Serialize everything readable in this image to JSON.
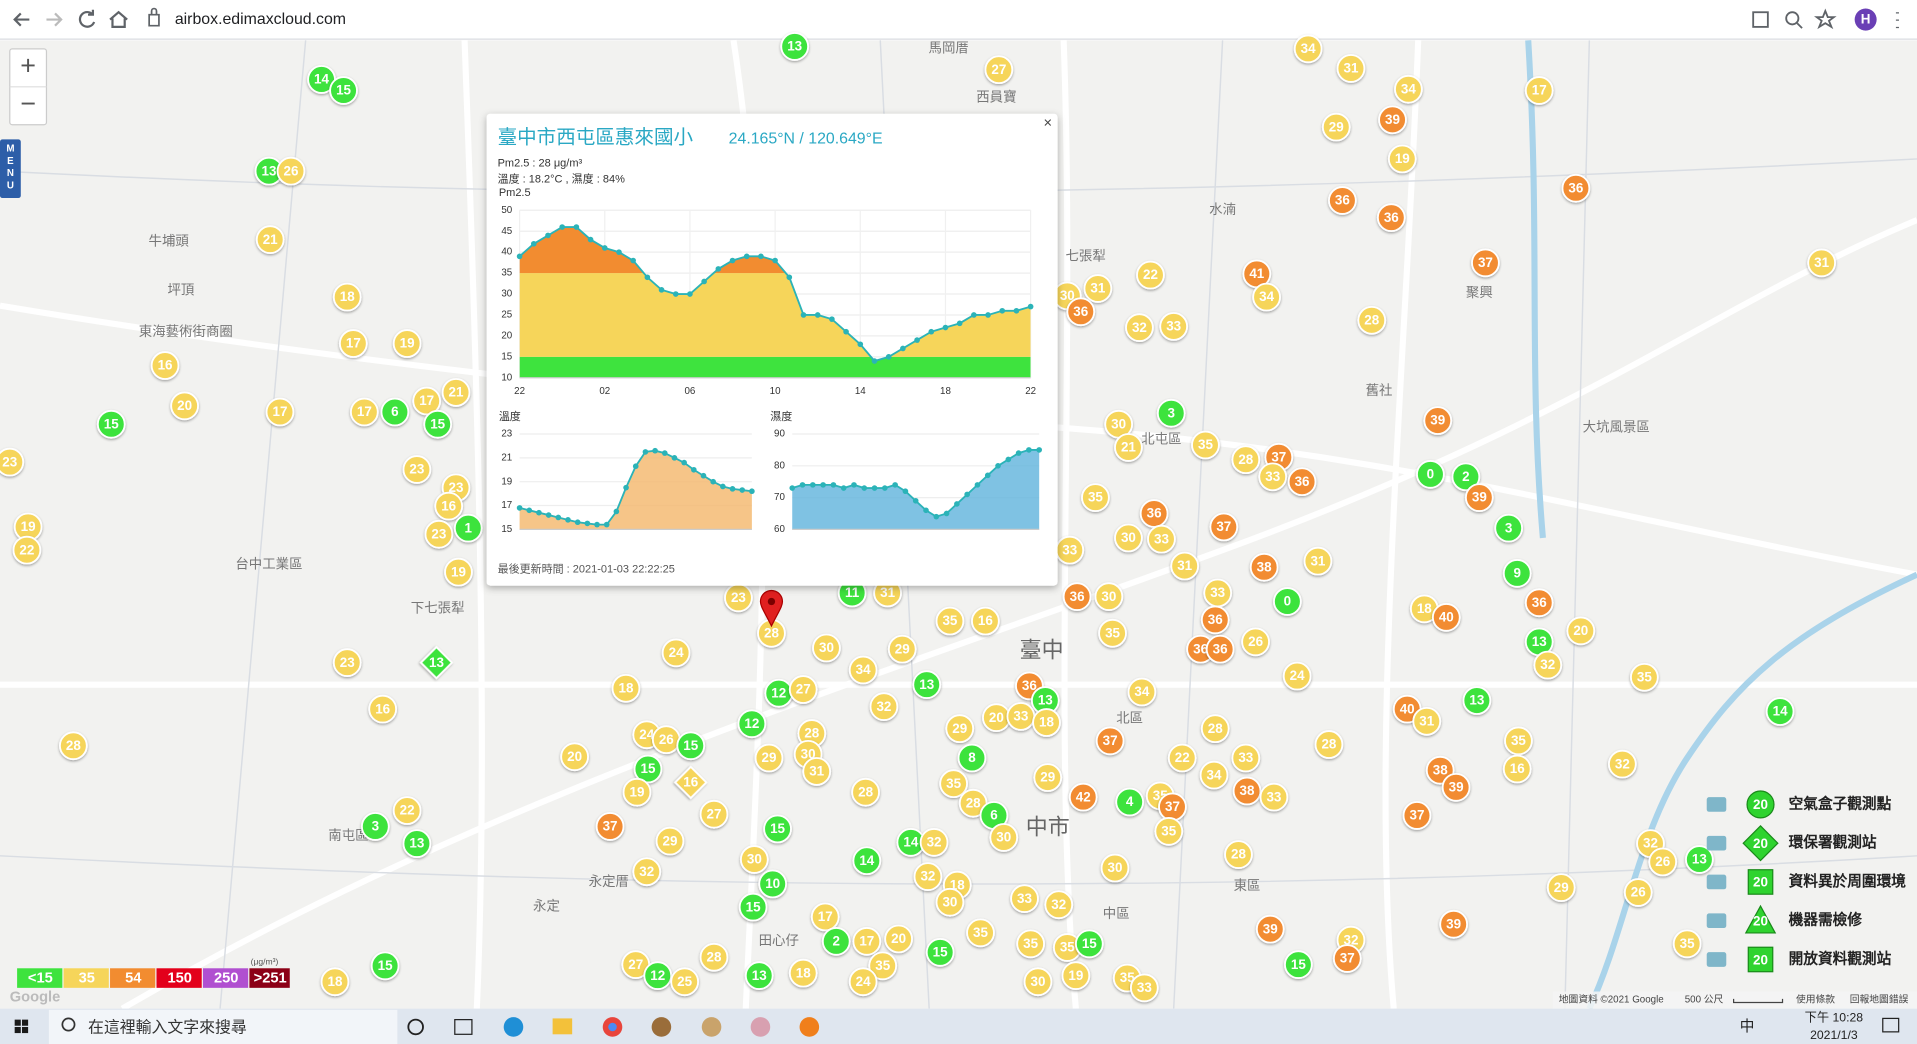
{
  "browser": {
    "url": "airbox.edimaxcloud.com",
    "avatar": "H"
  },
  "map_controls": {
    "zoom_in": "+",
    "zoom_out": "−",
    "menu": "MENU"
  },
  "map_labels": [
    "馬岡厝",
    "西員寶",
    "牛埔頭",
    "坪頂",
    "東海藝術街商圈",
    "台中工業區",
    "下七張犁",
    "七張犁",
    "北屯區",
    "北區",
    "臺中",
    "中區",
    "東區",
    "南屯區",
    "永定厝",
    "田心仔",
    "中市",
    "大坑風景區",
    "水湳",
    "聚興",
    "舊社",
    "永定"
  ],
  "popup": {
    "title": "臺中市西屯區惠來國小",
    "coords": "24.165°N / 120.649°E",
    "close": "×",
    "pm25_text": "Pm2.5 : 28 μg/m³",
    "temp_humidity_text": "溫度 : 18.2°C , 濕度 : 84%",
    "updated": "最後更新時間 : 2021-01-03 22:22:25",
    "charts": [
      {
        "type": "area",
        "title": "Pm2.5",
        "values": [
          39,
          42,
          44,
          46,
          46,
          43,
          41,
          40,
          38,
          34,
          31,
          30,
          30,
          33,
          36,
          38,
          39,
          39,
          38,
          34,
          25,
          25,
          24,
          21,
          18,
          14,
          15,
          17,
          19,
          21,
          22,
          23,
          25,
          25,
          26,
          26,
          27
        ],
        "ylim": [
          10,
          50
        ],
        "yticks": [
          10,
          15,
          20,
          25,
          30,
          35,
          40,
          45,
          50
        ],
        "xticks": [
          "22",
          "02",
          "06",
          "10",
          "14",
          "18",
          "22"
        ],
        "color": "#2bb3b8"
      },
      {
        "type": "area",
        "title": "溫度",
        "values": [
          16.8,
          16.6,
          16.4,
          16.2,
          16.0,
          15.8,
          15.6,
          15.5,
          15.4,
          15.4,
          16.5,
          18.5,
          20.3,
          21.5,
          21.6,
          21.4,
          21.0,
          20.6,
          20.0,
          19.5,
          19.0,
          18.6,
          18.4,
          18.3,
          18.2
        ],
        "ylim": [
          15,
          23
        ],
        "yticks": [
          15,
          17,
          19,
          21,
          23
        ],
        "color": "#f4b66a"
      },
      {
        "type": "area",
        "title": "濕度",
        "values": [
          73,
          74,
          74,
          74,
          74,
          73,
          74,
          73,
          73,
          73,
          74,
          72,
          69,
          66,
          64,
          65,
          68,
          71,
          74,
          77,
          80,
          82,
          84,
          85,
          85
        ],
        "ylim": [
          60,
          90
        ],
        "yticks": [
          60,
          70,
          80,
          90
        ],
        "color": "#5fb3dc"
      }
    ]
  },
  "aqi_scale": [
    {
      "label": "<15",
      "color": "#3ee33e"
    },
    {
      "label": "35",
      "color": "#f6d55a"
    },
    {
      "label": "54",
      "color": "#f28c30"
    },
    {
      "label": "150",
      "color": "#e3001b"
    },
    {
      "label": "250",
      "color": "#b04fd0"
    },
    {
      "label": ">251",
      "color": "#8c0016"
    }
  ],
  "aqi_unit": "(μg/m³)",
  "map_markers": {
    "values": [
      13,
      27,
      34,
      31,
      34,
      17,
      14,
      15,
      29,
      39,
      19,
      13,
      26,
      36,
      36,
      36,
      21,
      37,
      31,
      41,
      22,
      31,
      30,
      36,
      32,
      33,
      34,
      28,
      18,
      17,
      19,
      16,
      20,
      17,
      17,
      6,
      17,
      21,
      15,
      15,
      3,
      39,
      30,
      35,
      21,
      28,
      37,
      33,
      36,
      0,
      2,
      39,
      3,
      23,
      23,
      16,
      23,
      1,
      23,
      19,
      22,
      35,
      36,
      37,
      30,
      33,
      33,
      31,
      38,
      31,
      19,
      9,
      11,
      31,
      36,
      30,
      33,
      0,
      18,
      40,
      36,
      23,
      24,
      28,
      35,
      16,
      36,
      35,
      26,
      13,
      20,
      36,
      36,
      30,
      29,
      13,
      23,
      32,
      34,
      13,
      36,
      34,
      24,
      35,
      18,
      12,
      27,
      13,
      32,
      13,
      40,
      31,
      14,
      16,
      28,
      12,
      29,
      20,
      33,
      18,
      28,
      28,
      24,
      26,
      15,
      37,
      28,
      35,
      20,
      29,
      30,
      8,
      33,
      22,
      15,
      31,
      16,
      32,
      16,
      29,
      35,
      34,
      38,
      39,
      19,
      28,
      38,
      33,
      42,
      4,
      35,
      37,
      22,
      27,
      28,
      6,
      37,
      37,
      15,
      35,
      3,
      13,
      32,
      29,
      14,
      32,
      30,
      28,
      26,
      13,
      29,
      30,
      14,
      30,
      32,
      32,
      18,
      10,
      33,
      32,
      26,
      15,
      30,
      17,
      39,
      39,
      32,
      2,
      17,
      20,
      35,
      35,
      35,
      15,
      35,
      28,
      15,
      15,
      37,
      15,
      35,
      27,
      12,
      25,
      13,
      18,
      24,
      19,
      35,
      33,
      30,
      18
    ]
  },
  "legend": {
    "items": [
      {
        "label": "空氣盒子觀測點",
        "badge": "20"
      },
      {
        "label": "環保署觀測站",
        "badge": "20"
      },
      {
        "label": "資料異於周圍環境",
        "badge": "20"
      },
      {
        "label": "機器需檢修",
        "badge": "20"
      },
      {
        "label": "開放資料觀測站",
        "badge": "20"
      }
    ]
  },
  "map_footer": {
    "logo": "Google",
    "data": "地圖資料 ©2021 Google",
    "scale": "500 公尺",
    "terms": "使用條款",
    "report": "回報地圖錯誤"
  },
  "taskbar": {
    "search": "在這裡輸入文字來搜尋",
    "ime": "中",
    "time": "下午 10:28",
    "date": "2021/1/3"
  }
}
